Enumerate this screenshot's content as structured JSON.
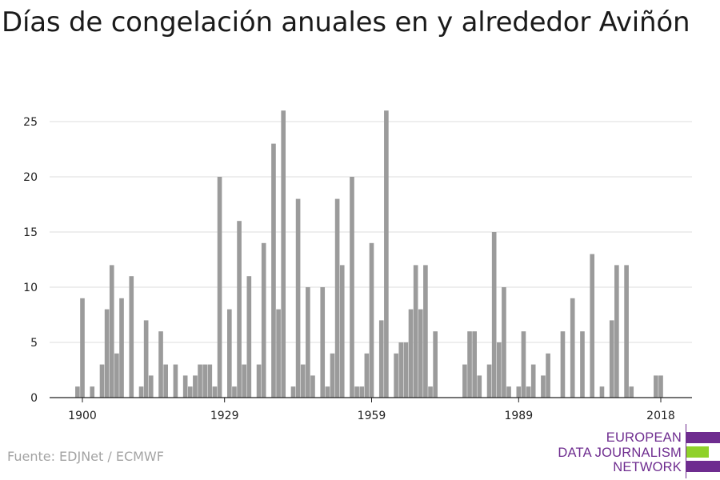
{
  "title": "Días de congelación anuales en y alrededor Aviñón",
  "source": "Fuente: EDJNet / ECMWF",
  "logo": {
    "lines": [
      "EUROPEAN",
      "DATA JOURNALISM",
      "NETWORK"
    ],
    "colors": {
      "purple": "#6e2c8f",
      "green": "#8fd12a"
    }
  },
  "chart_data": {
    "type": "bar",
    "title": "Días de congelación anuales en y alrededor Aviñón",
    "xlabel": "",
    "ylabel": "",
    "x_start": 1900,
    "x_end": 2018,
    "x": [
      1899,
      1900,
      1901,
      1902,
      1903,
      1904,
      1905,
      1906,
      1907,
      1908,
      1909,
      1910,
      1911,
      1912,
      1913,
      1914,
      1915,
      1916,
      1917,
      1918,
      1919,
      1920,
      1921,
      1922,
      1923,
      1924,
      1925,
      1926,
      1927,
      1928,
      1929,
      1930,
      1931,
      1932,
      1933,
      1934,
      1935,
      1936,
      1937,
      1938,
      1939,
      1940,
      1941,
      1942,
      1943,
      1944,
      1945,
      1946,
      1947,
      1948,
      1949,
      1950,
      1951,
      1952,
      1953,
      1954,
      1955,
      1956,
      1957,
      1958,
      1959,
      1960,
      1961,
      1962,
      1963,
      1964,
      1965,
      1966,
      1967,
      1968,
      1969,
      1970,
      1971,
      1972,
      1973,
      1974,
      1975,
      1976,
      1977,
      1978,
      1979,
      1980,
      1981,
      1982,
      1983,
      1984,
      1985,
      1986,
      1987,
      1988,
      1989,
      1990,
      1991,
      1992,
      1993,
      1994,
      1995,
      1996,
      1997,
      1998,
      1999,
      2000,
      2001,
      2002,
      2003,
      2004,
      2005,
      2006,
      2007,
      2008,
      2009,
      2010,
      2011,
      2012,
      2013,
      2014,
      2015,
      2016,
      2017,
      2018
    ],
    "values": [
      1,
      9,
      0,
      1,
      0,
      3,
      8,
      12,
      4,
      9,
      0,
      11,
      0,
      1,
      7,
      2,
      0,
      6,
      3,
      0,
      3,
      0,
      2,
      1,
      2,
      3,
      3,
      3,
      1,
      20,
      0,
      8,
      1,
      16,
      3,
      11,
      0,
      3,
      14,
      0,
      23,
      8,
      26,
      0,
      1,
      18,
      3,
      10,
      2,
      0,
      10,
      1,
      4,
      18,
      12,
      0,
      20,
      1,
      1,
      4,
      14,
      0,
      7,
      26,
      0,
      4,
      5,
      5,
      8,
      12,
      8,
      12,
      1,
      6,
      0,
      0,
      0,
      0,
      0,
      3,
      6,
      6,
      2,
      0,
      3,
      15,
      5,
      10,
      1,
      0,
      1,
      6,
      1,
      3,
      0,
      2,
      4,
      0,
      0,
      6,
      0,
      9,
      0,
      6,
      0,
      13,
      0,
      1,
      0,
      7,
      12,
      0,
      12,
      1,
      0,
      0,
      0,
      0,
      2,
      2
    ],
    "x_ticks": [
      "1900",
      "1929",
      "1959",
      "1989",
      "2018"
    ],
    "y_ticks": [
      "0",
      "5",
      "10",
      "15",
      "20",
      "25"
    ],
    "ylim": [
      0,
      27
    ],
    "grid": true,
    "legend": "none",
    "colors": {
      "bar": "#9b9b9b",
      "grid": "#dedede",
      "axis": "#222222"
    }
  }
}
